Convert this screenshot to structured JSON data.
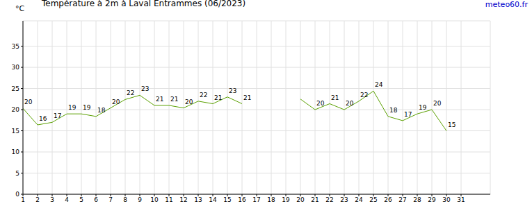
{
  "chart_data": {
    "type": "line",
    "title": "Température à 2m à Laval Entrammes (06/2023)",
    "ylabel": "°C",
    "source": "meteo60.fr",
    "x": [
      1,
      2,
      3,
      4,
      5,
      6,
      7,
      8,
      9,
      10,
      11,
      12,
      13,
      14,
      15,
      16,
      17,
      18,
      19,
      20,
      21,
      22,
      23,
      24,
      25,
      26,
      27,
      28,
      29,
      30,
      31
    ],
    "values": [
      20.3,
      16.4,
      17.0,
      19.0,
      19.0,
      18.4,
      20.4,
      22.4,
      23.4,
      21.0,
      21.0,
      20.4,
      22.0,
      21.4,
      23.0,
      21.4,
      null,
      null,
      null,
      22.5,
      20.0,
      21.4,
      20.0,
      22.0,
      24.4,
      18.4,
      17.4,
      19.0,
      20.0,
      15.0,
      null
    ],
    "value_labels": [
      "20",
      "16",
      "17",
      "19",
      "19",
      "18",
      "20",
      "22",
      "23",
      "21",
      "21",
      "20",
      "22",
      "21",
      "23",
      "21",
      null,
      null,
      null,
      null,
      "20",
      "21",
      "20",
      "22",
      "24",
      "18",
      "17",
      "19",
      "20",
      "15",
      null
    ],
    "color": "#5aa000",
    "xlim": [
      1,
      33
    ],
    "xticks": [
      1,
      2,
      3,
      4,
      5,
      6,
      7,
      8,
      9,
      10,
      11,
      12,
      13,
      14,
      15,
      16,
      17,
      18,
      19,
      20,
      21,
      22,
      23,
      24,
      25,
      26,
      27,
      28,
      29,
      30,
      31
    ],
    "ylim": [
      0,
      41
    ],
    "yticks": [
      0,
      5,
      10,
      15,
      20,
      25,
      30,
      35
    ],
    "grid": true,
    "data_labels": true
  }
}
